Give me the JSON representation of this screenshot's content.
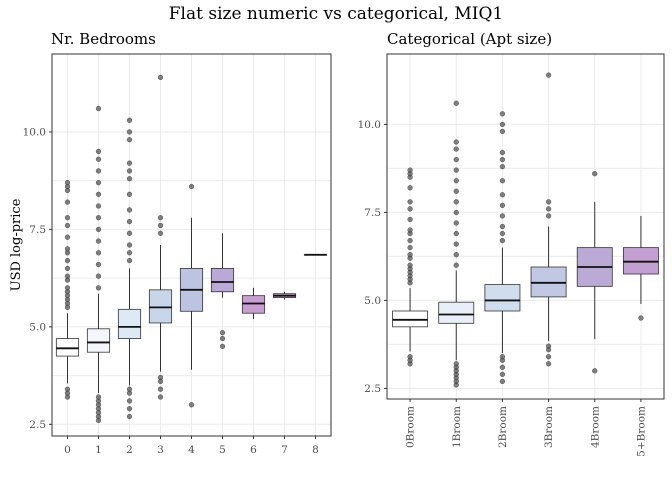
{
  "title": "Flat size numeric vs categorical, MIQ1",
  "colors": {
    "outlier": "#555555",
    "box_stroke": "#333333",
    "median": "#111111"
  },
  "chart_data": [
    {
      "type": "box",
      "title": "Nr. Bedrooms",
      "ylabel": "USD log-price",
      "xlabel": "",
      "ylim": [
        2.2,
        12.0
      ],
      "yticks": [
        2.5,
        5.0,
        7.5,
        10.0
      ],
      "grid": true,
      "categories": [
        "0",
        "1",
        "2",
        "3",
        "4",
        "5",
        "6",
        "7",
        "8"
      ],
      "fills": [
        "#ffffff",
        "#f3f6fb",
        "#dde9f4",
        "#c8d6ea",
        "#bcc4e1",
        "#b8a9d6",
        "#c79fd0",
        "#d6a6d8",
        "#e8a3dd"
      ],
      "boxes": [
        {
          "q1": 4.25,
          "median": 4.45,
          "q3": 4.7,
          "whisker_low": 3.55,
          "whisker_high": 5.35,
          "outliers": [
            3.2,
            3.3,
            3.4,
            5.5,
            5.6,
            5.7,
            5.8,
            5.9,
            6.0,
            6.2,
            6.3,
            6.5,
            6.7,
            6.9,
            7.0,
            7.3,
            7.6,
            7.8,
            8.2,
            8.5,
            8.6,
            8.7
          ]
        },
        {
          "q1": 4.35,
          "median": 4.6,
          "q3": 4.95,
          "whisker_low": 3.3,
          "whisker_high": 5.85,
          "outliers": [
            2.6,
            2.7,
            2.8,
            2.9,
            3.0,
            3.1,
            3.2,
            6.0,
            6.3,
            6.6,
            6.9,
            7.2,
            7.5,
            7.8,
            8.1,
            8.4,
            8.7,
            9.0,
            9.3,
            9.5,
            10.6
          ]
        },
        {
          "q1": 4.7,
          "median": 5.0,
          "q3": 5.45,
          "whisker_low": 3.5,
          "whisker_high": 6.5,
          "outliers": [
            2.7,
            2.9,
            3.1,
            3.3,
            3.4,
            6.7,
            6.9,
            7.1,
            7.4,
            7.7,
            8.0,
            8.4,
            8.8,
            9.0,
            9.2,
            9.8,
            10.0,
            10.3
          ]
        },
        {
          "q1": 5.1,
          "median": 5.5,
          "q3": 5.95,
          "whisker_low": 3.85,
          "whisker_high": 7.1,
          "outliers": [
            3.2,
            3.4,
            3.6,
            3.7,
            7.4,
            7.6,
            7.8,
            11.4
          ]
        },
        {
          "q1": 5.4,
          "median": 5.95,
          "q3": 6.5,
          "whisker_low": 3.9,
          "whisker_high": 7.8,
          "outliers": [
            3.0,
            8.6
          ]
        },
        {
          "q1": 5.9,
          "median": 6.15,
          "q3": 6.5,
          "whisker_low": 5.75,
          "whisker_high": 7.4,
          "outliers": [
            4.5,
            4.7,
            4.85
          ]
        },
        {
          "q1": 5.35,
          "median": 5.6,
          "q3": 5.8,
          "whisker_low": 5.2,
          "whisker_high": 6.0,
          "outliers": []
        },
        {
          "q1": 5.75,
          "median": 5.8,
          "q3": 5.85,
          "whisker_low": 5.7,
          "whisker_high": 5.9,
          "outliers": []
        },
        {
          "q1": 6.85,
          "median": 6.85,
          "q3": 6.85,
          "whisker_low": 6.85,
          "whisker_high": 6.85,
          "outliers": []
        }
      ]
    },
    {
      "type": "box",
      "title": "Categorical (Apt size)",
      "ylabel": "",
      "xlabel": "",
      "ylim": [
        2.2,
        12.0
      ],
      "yticks": [
        2.5,
        5.0,
        7.5,
        10.0
      ],
      "grid": true,
      "categories": [
        "0Broom",
        "1Broom",
        "2Broom",
        "3Broom",
        "4Broom",
        "5+Broom"
      ],
      "fills": [
        "#ffffff",
        "#e8eff8",
        "#cfddee",
        "#c0c8e4",
        "#bba9d6",
        "#c39fd2"
      ],
      "boxes": [
        {
          "q1": 4.25,
          "median": 4.45,
          "q3": 4.7,
          "whisker_low": 3.55,
          "whisker_high": 5.35,
          "outliers": [
            3.2,
            3.3,
            3.4,
            5.5,
            5.6,
            5.7,
            5.8,
            5.9,
            6.0,
            6.2,
            6.3,
            6.5,
            6.7,
            6.9,
            7.0,
            7.3,
            7.6,
            7.8,
            8.2,
            8.5,
            8.6,
            8.7
          ]
        },
        {
          "q1": 4.35,
          "median": 4.6,
          "q3": 4.95,
          "whisker_low": 3.3,
          "whisker_high": 5.85,
          "outliers": [
            2.6,
            2.7,
            2.8,
            2.9,
            3.0,
            3.1,
            3.2,
            6.0,
            6.3,
            6.6,
            6.9,
            7.2,
            7.5,
            7.8,
            8.1,
            8.4,
            8.7,
            9.0,
            9.3,
            9.5,
            10.6
          ]
        },
        {
          "q1": 4.7,
          "median": 5.0,
          "q3": 5.45,
          "whisker_low": 3.5,
          "whisker_high": 6.5,
          "outliers": [
            2.7,
            2.9,
            3.1,
            3.3,
            3.4,
            6.7,
            6.9,
            7.1,
            7.4,
            7.7,
            8.0,
            8.4,
            8.8,
            9.0,
            9.2,
            9.8,
            10.0,
            10.3
          ]
        },
        {
          "q1": 5.1,
          "median": 5.5,
          "q3": 5.95,
          "whisker_low": 3.85,
          "whisker_high": 7.1,
          "outliers": [
            3.2,
            3.4,
            3.6,
            3.7,
            7.4,
            7.6,
            7.8,
            11.4
          ]
        },
        {
          "q1": 5.4,
          "median": 5.95,
          "q3": 6.5,
          "whisker_low": 3.9,
          "whisker_high": 7.8,
          "outliers": [
            3.0,
            8.6
          ]
        },
        {
          "q1": 5.75,
          "median": 6.1,
          "q3": 6.5,
          "whisker_low": 4.9,
          "whisker_high": 7.4,
          "outliers": [
            4.5
          ]
        }
      ]
    }
  ]
}
